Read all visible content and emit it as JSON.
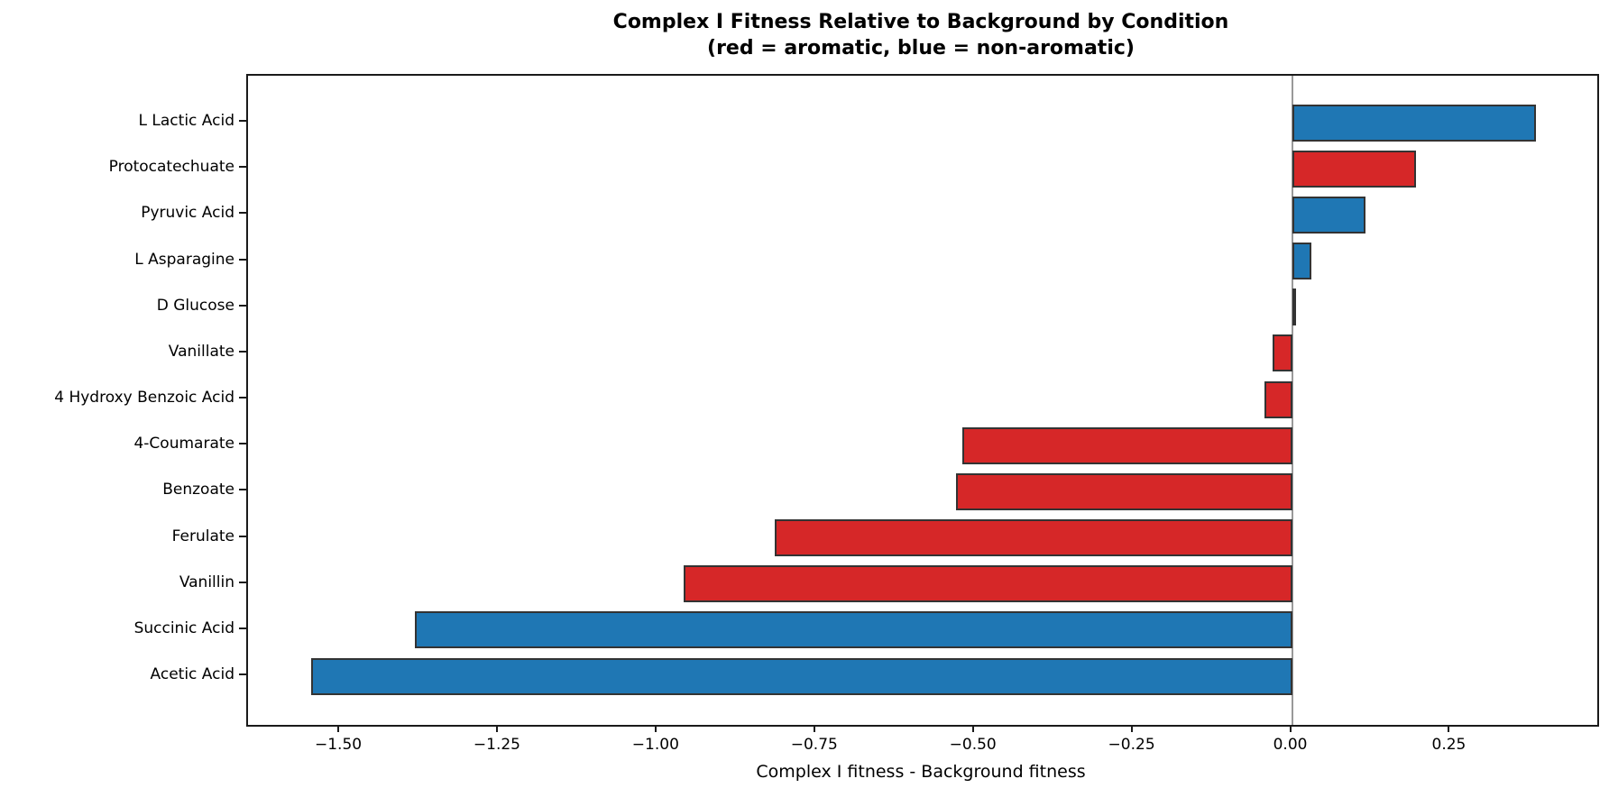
{
  "chart_data": {
    "type": "bar",
    "orientation": "horizontal",
    "title": "Complex I Fitness Relative to Background by Condition",
    "subtitle": "(red = aromatic, blue = non-aromatic)",
    "xlabel": "Complex I fitness - Background fitness",
    "categories": [
      "L Lactic Acid",
      "Protocatechuate",
      "Pyruvic Acid",
      "L Asparagine",
      "D Glucose",
      "Vanillate",
      "4 Hydroxy Benzoic Acid",
      "4-Coumarate",
      "Benzoate",
      "Ferulate",
      "Vanillin",
      "Succinic Acid",
      "Acetic Acid"
    ],
    "values": [
      0.385,
      0.195,
      0.116,
      0.031,
      0.005,
      -0.03,
      -0.044,
      -0.52,
      -0.53,
      -0.815,
      -0.959,
      -1.382,
      -1.546
    ],
    "groups": [
      "non-aromatic",
      "aromatic",
      "non-aromatic",
      "non-aromatic",
      "non-aromatic",
      "aromatic",
      "aromatic",
      "aromatic",
      "aromatic",
      "aromatic",
      "aromatic",
      "non-aromatic",
      "non-aromatic"
    ],
    "colors": {
      "aromatic": "#d62728",
      "non-aromatic": "#1f77b4"
    },
    "bar_edge_color": "#333333",
    "zero_line_color": "#999999",
    "xlim": [
      -1.645,
      0.481
    ],
    "xticks": [
      -1.5,
      -1.25,
      -1.0,
      -0.75,
      -0.5,
      -0.25,
      0.0,
      0.25
    ],
    "xtick_labels": [
      "−1.50",
      "−1.25",
      "−1.00",
      "−0.75",
      "−0.50",
      "−0.25",
      "0.00",
      "0.25"
    ],
    "grid": false,
    "legend_position": "none",
    "zero_line": true
  }
}
